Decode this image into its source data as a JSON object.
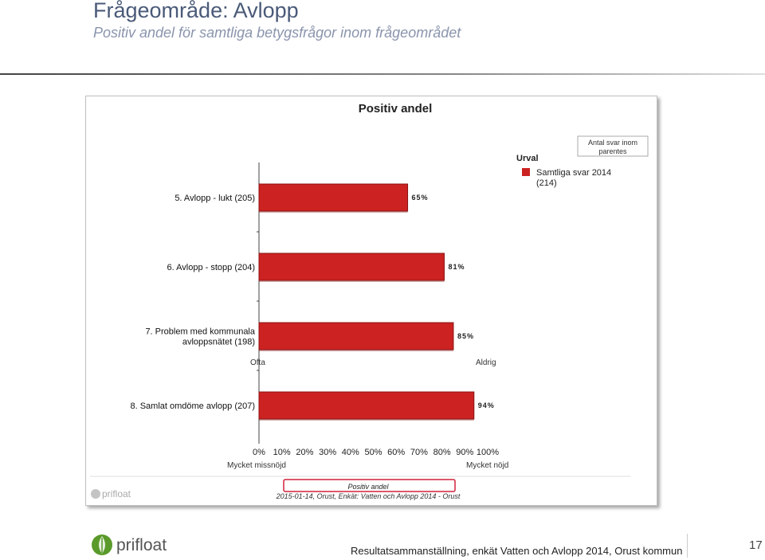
{
  "slide": {
    "title": "Frågeområde: Avlopp",
    "subtitle": "Positiv andel för samtliga betygsfrågor inom frågeområdet"
  },
  "chart_data": {
    "type": "bar",
    "orientation": "horizontal",
    "title": "Positiv andel",
    "categories": [
      "5. Avlopp - lukt (205)",
      "6. Avlopp - stopp (204)",
      "7. Problem med kommunala avloppsnätet (198)",
      "8. Samlat omdöme avlopp (207)"
    ],
    "category_lines": [
      [
        "5. Avlopp - lukt (205)"
      ],
      [
        "6. Avlopp - stopp (204)"
      ],
      [
        "7. Problem med kommunala",
        "avloppsnätet (198)"
      ],
      [
        "8. Samlat omdöme avlopp (207)"
      ]
    ],
    "series": [
      {
        "name": "Samtliga svar 2014 (214)",
        "values": [
          65,
          81,
          85,
          94
        ],
        "value_labels": [
          "65%",
          "81%",
          "85%",
          "94%"
        ],
        "color": "#cc2222"
      }
    ],
    "xlim": [
      0,
      100
    ],
    "xticks": [
      "0%",
      "10%",
      "20%",
      "30%",
      "40%",
      "50%",
      "60%",
      "70%",
      "80%",
      "90%",
      "100%"
    ],
    "legend": {
      "title": "Urval",
      "position": "top-right",
      "entries": [
        [
          "Samtliga svar 2014",
          "(214)"
        ]
      ]
    },
    "note": [
      "Antal svar inom",
      "parentes"
    ],
    "scale_labels": {
      "row_left": "Ofta",
      "row_right": "Aldrig",
      "axis_left": "Mycket missnöjd",
      "axis_right": "Mycket nöjd"
    },
    "caption": {
      "title": "Positiv andel",
      "subtitle": "2015-01-14, Orust, Enkät: Vatten och Avlopp 2014 - Orust"
    },
    "brand": "prifloat"
  },
  "footer": {
    "brand": "prifloat",
    "text": "Resultatsammanställning, enkät Vatten och Avlopp 2014, Orust kommun",
    "page_number": "17"
  },
  "colors": {
    "bar": "#cc2222",
    "title": "#4a5a78",
    "subtitle": "#8a94ad",
    "logo_green": "#5a9a2a"
  }
}
